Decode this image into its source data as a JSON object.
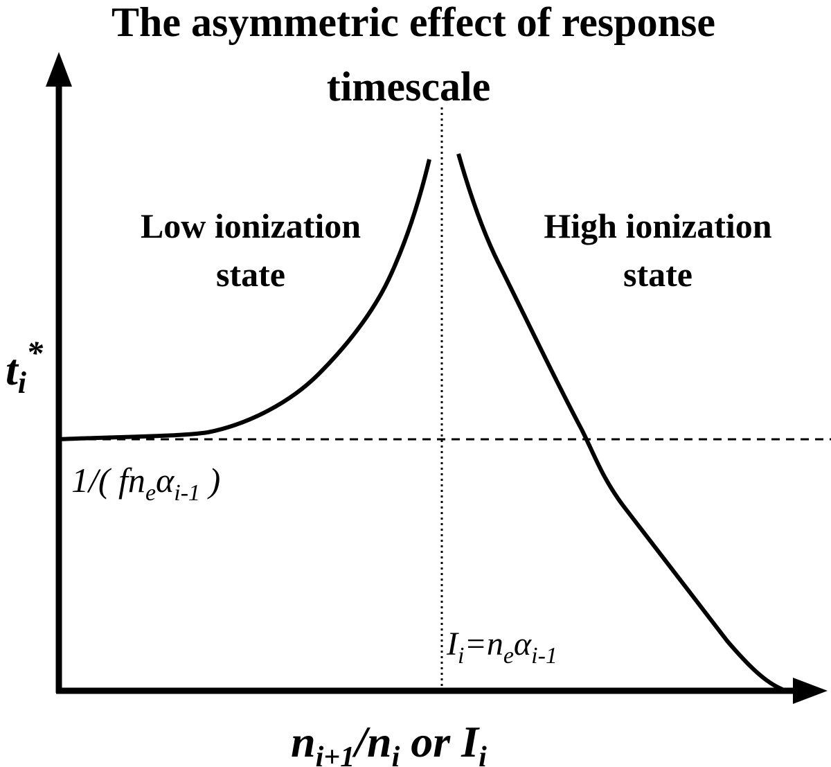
{
  "title": [
    "The asymmetric effect of response",
    "timescale"
  ],
  "regions": [
    {
      "label": [
        "Low ionization",
        "state"
      ]
    },
    {
      "label": [
        "High ionization",
        "state"
      ]
    }
  ],
  "y_axis_label": [
    "t",
    "i",
    "*"
  ],
  "x_axis_label": [
    "n",
    "i+1",
    "/n",
    "i",
    " or I",
    "i"
  ],
  "baseline_label": [
    "1/( fn",
    "e",
    "α",
    "i-1",
    " )"
  ],
  "crossover_label": [
    "I",
    "i",
    "=n",
    "e",
    "α",
    "i-1"
  ]
}
